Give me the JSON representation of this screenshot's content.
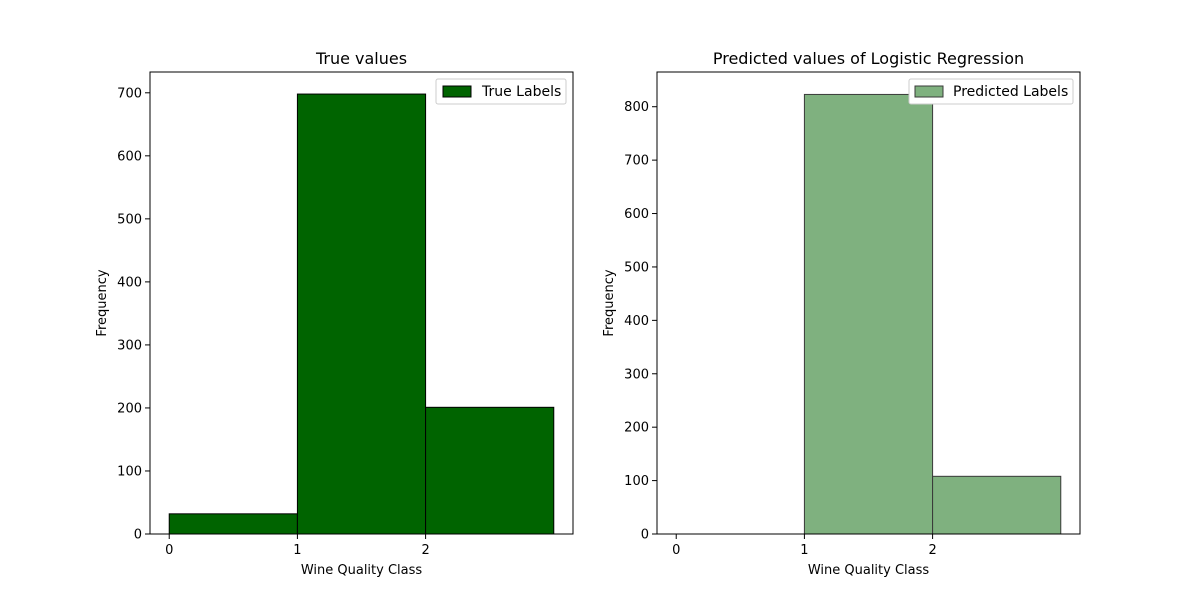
{
  "chart_data": [
    {
      "type": "bar",
      "title": "True values",
      "xlabel": "Wine Quality Class",
      "ylabel": "Frequency",
      "xlim": [
        -0.15,
        3.15
      ],
      "ylim": [
        0,
        733
      ],
      "x_ticks": [
        "0",
        "1",
        "2"
      ],
      "y_ticks": [
        "0",
        "100",
        "200",
        "300",
        "400",
        "500",
        "600",
        "700"
      ],
      "legend_placement": "top-right",
      "grid": false,
      "bins": [
        {
          "x0": 0,
          "x1": 1,
          "value": 32
        },
        {
          "x0": 1,
          "x1": 2,
          "value": 698
        },
        {
          "x0": 2,
          "x1": 3,
          "value": 201
        }
      ],
      "series": [
        {
          "name": "True Labels",
          "color": "#006400",
          "edge_color": "#000000",
          "opacity": 1.0
        }
      ]
    },
    {
      "type": "bar",
      "title": "Predicted values of Logistic Regression",
      "xlabel": "Wine Quality Class",
      "ylabel": "Frequency",
      "xlim": [
        -0.15,
        3.15
      ],
      "ylim": [
        0,
        865
      ],
      "x_ticks": [
        "0",
        "1",
        "2"
      ],
      "y_ticks": [
        "0",
        "100",
        "200",
        "300",
        "400",
        "500",
        "600",
        "700",
        "800"
      ],
      "legend_placement": "top-right",
      "grid": false,
      "bins": [
        {
          "x0": 0,
          "x1": 1,
          "value": 0
        },
        {
          "x0": 1,
          "x1": 2,
          "value": 823
        },
        {
          "x0": 2,
          "x1": 3,
          "value": 108
        }
      ],
      "series": [
        {
          "name": "Predicted Labels",
          "color": "#7fb17f",
          "edge_color": "#3a3a3a",
          "opacity": 1.0
        }
      ]
    }
  ]
}
